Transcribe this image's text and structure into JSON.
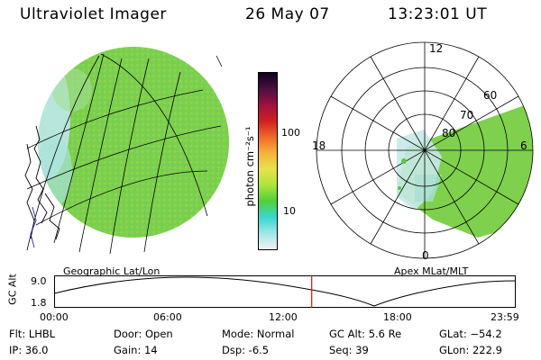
{
  "header": {
    "instrument": "Ultraviolet Imager",
    "date": "26 May 07",
    "time": "13:23:01 UT"
  },
  "colors": {
    "imageGreen": "#79d24a",
    "imageYellow": "#cfe23a",
    "imageCyan": "#bfe8ea",
    "gridLine": "#000000",
    "timeMarker": "#d01010"
  },
  "colorbar": {
    "unit_label": "photon cm⁻²s⁻¹",
    "ticks": [
      "100",
      "10"
    ],
    "stops": [
      "#f2f2f2",
      "#9fe6e6",
      "#39d7cf",
      "#4fcf3a",
      "#aee43a",
      "#e8e24a",
      "#f6b23a",
      "#ee6a2a",
      "#d02020",
      "#a01040",
      "#4a1040",
      "#100020"
    ]
  },
  "geo_panel": {
    "label": "Geographic Lat/Lon"
  },
  "polar_panel": {
    "label": "Apex MLat/MLT",
    "mlt_labels": [
      "12",
      "18",
      "6",
      "0"
    ],
    "lat_labels": [
      "60",
      "70",
      "80"
    ]
  },
  "altitude_plot": {
    "ylabel": "GC Alt",
    "yticks": [
      "9.0",
      "1.8"
    ],
    "xticks": [
      "00:00",
      "06:00",
      "12:00",
      "18:00",
      "23:59"
    ],
    "current_time_fraction": 0.558
  },
  "info": {
    "filter": "Flt: LHBL",
    "ip": "IP: 36.0",
    "door": "Door: Open",
    "gain": "Gain: 14",
    "mode": "Mode: Normal",
    "dsp": "Dsp:    -6.5",
    "gc_alt": "GC Alt: 5.6 Re",
    "seq": "Seq: 39",
    "glat": "GLat: −54.2",
    "glon": "GLon: 222.9"
  }
}
